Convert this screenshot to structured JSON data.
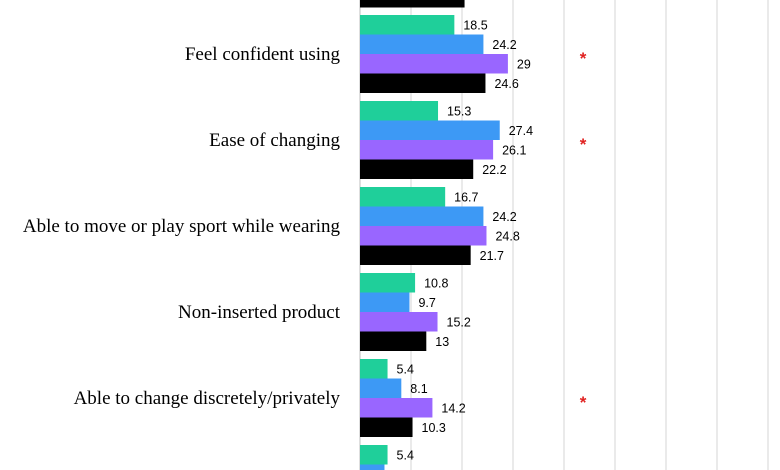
{
  "chart_data": {
    "type": "bar",
    "orientation": "horizontal",
    "categories": [
      "Feel confident using",
      "Ease of changing",
      "Able to move or play sport while wearing",
      "Non-inserted product",
      "Able to change discretely/privately",
      ""
    ],
    "series": [
      {
        "color": "#1fcf9a",
        "values": [
          18.5,
          15.3,
          16.7,
          10.8,
          5.4,
          5.4
        ]
      },
      {
        "color": "#3d99f5",
        "values": [
          24.2,
          27.4,
          24.2,
          9.7,
          8.1,
          4.8
        ]
      },
      {
        "color": "#9966ff",
        "values": [
          29,
          26.1,
          24.8,
          15.2,
          14.2,
          null
        ]
      },
      {
        "color": "#000000",
        "values": [
          24.6,
          22.2,
          21.7,
          13,
          10.3,
          null
        ]
      }
    ],
    "significance_markers": [
      "*",
      "*",
      "",
      "",
      "*",
      ""
    ],
    "marker_color": "#e0201f",
    "partial_top_black_bar_value": 20.5,
    "xlim": [
      0,
      80
    ],
    "grid": true
  }
}
